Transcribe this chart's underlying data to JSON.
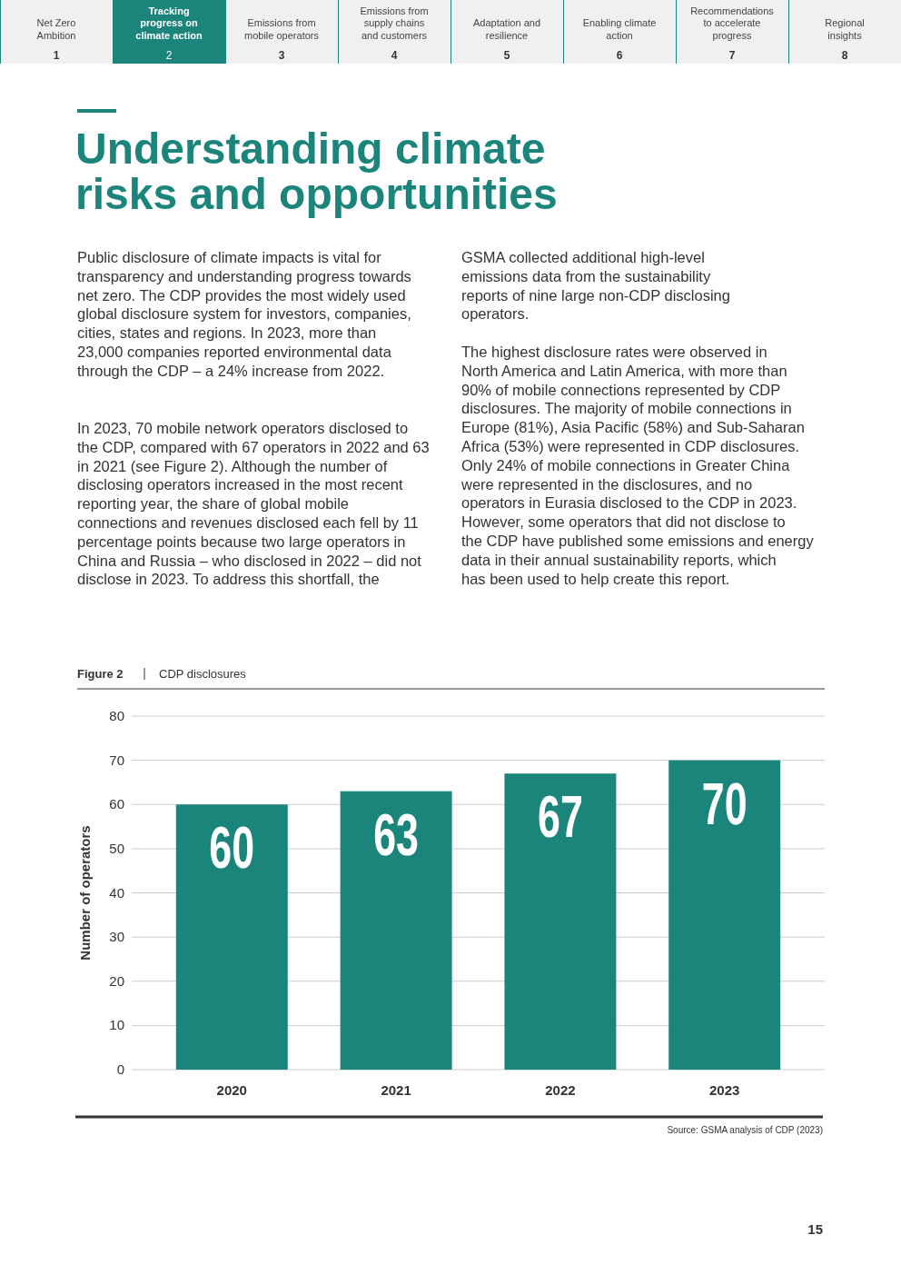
{
  "chart_data": {
    "type": "bar",
    "title": "Figure 2",
    "subtitle": "CDP disclosures",
    "ylabel": "Number of operators",
    "categories": [
      "2020",
      "2021",
      "2022",
      "2023"
    ],
    "values": [
      60,
      63,
      67,
      70
    ],
    "color": "#1b857b",
    "data_labels": true,
    "ylim": [
      0,
      80
    ],
    "yticks": [
      0,
      10,
      20,
      30,
      40,
      50,
      60,
      70,
      80
    ],
    "grid": "y",
    "annotations": [
      "Net Zero Ambition",
      "Tracking progress on climate action",
      "Emissions from mobile operators",
      "Emissions from supply chains and customers",
      "Adaptation and resilience",
      "Enabling climate action",
      "Recommendations to accelerate progress",
      "Regional insights",
      "1",
      "2",
      "3",
      "4",
      "5",
      "6",
      "7",
      "8",
      "Understanding climate risks and opportunities",
      "Public disclosure of climate impacts is vital for transparency and understanding progress towards net zero. The CDP provides the most widely used global disclosure system for investors, companies, cities, states and regions. In 2023, more than 23,000 companies reported environmental data through the CDP – a 24% increase from 2022.",
      "In 2023, 70 mobile network operators disclosed to the CDP, compared with 67 operators in 2022 and 63 in 2021 (see Figure 2). Although the number of disclosing operators increased in the most recent reporting year, the share of global mobile connections and revenues disclosed each fell by 11 percentage points because two large operators in China and Russia – who disclosed in 2022 – did not disclose in 2023. To address this shortfall, the",
      "GSMA collected additional high-level emissions data from the sustainability reports of nine large non-CDP disclosing operators.",
      "The highest disclosure rates were observed in North America and Latin America, with more than 90% of mobile connections represented by CDP disclosures. The majority of mobile connections in Europe (81%), Asia Pacific (58%) and Sub-Saharan Africa (53%) were represented in CDP disclosures. Only 24% of mobile connections in Greater China were represented in the disclosures, and no operators in Eurasia disclosed to the CDP in 2023. However, some operators that did not disclose to the CDP have published some emissions and energy data in their annual sustainability reports, which has been used to help create this report.",
      "Source: GSMA analysis of CDP (2023)",
      "15"
    ]
  }
}
